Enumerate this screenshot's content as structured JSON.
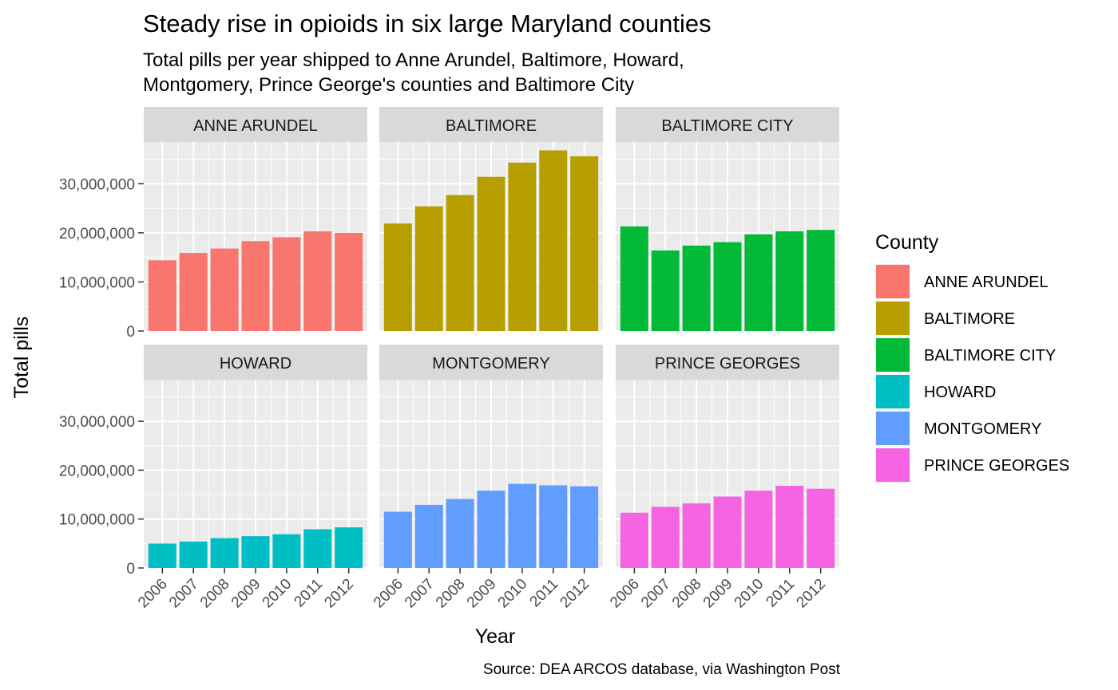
{
  "chart_data": {
    "type": "bar",
    "title": "Steady rise in opioids in six large Maryland counties",
    "subtitle_lines": [
      "Total pills per year shipped to Anne Arundel, Baltimore, Howard,",
      "Montgomery, Prince George's counties and Baltimore City"
    ],
    "xlabel": "Year",
    "ylabel": "Total pills",
    "caption": "Source: DEA ARCOS database, via Washington Post",
    "legend_title": "County",
    "legend_position": "right",
    "grid": true,
    "facet_layout": "3 columns x 2 rows",
    "categories": [
      "2006",
      "2007",
      "2008",
      "2009",
      "2010",
      "2011",
      "2012"
    ],
    "y_ticks": [
      0,
      10000000,
      20000000,
      30000000
    ],
    "y_tick_labels": [
      "0",
      "10,000,000",
      "20,000,000",
      "30,000,000"
    ],
    "ylim": [
      0,
      38500000
    ],
    "series": [
      {
        "name": "ANNE ARUNDEL",
        "color": "#F8766D",
        "values": [
          14400000,
          15900000,
          16800000,
          18300000,
          19100000,
          20300000,
          20000000
        ]
      },
      {
        "name": "BALTIMORE",
        "color": "#B79F00",
        "values": [
          21900000,
          25400000,
          27700000,
          31400000,
          34300000,
          36800000,
          35600000
        ]
      },
      {
        "name": "BALTIMORE CITY",
        "color": "#00BA38",
        "values": [
          21300000,
          16400000,
          17400000,
          18100000,
          19700000,
          20300000,
          20600000
        ]
      },
      {
        "name": "HOWARD",
        "color": "#00BFC4",
        "values": [
          5000000,
          5400000,
          6100000,
          6500000,
          6900000,
          7900000,
          8300000
        ]
      },
      {
        "name": "MONTGOMERY",
        "color": "#619CFF",
        "values": [
          11500000,
          12900000,
          14100000,
          15800000,
          17200000,
          16900000,
          16700000
        ]
      },
      {
        "name": "PRINCE GEORGES",
        "color": "#F564E3",
        "values": [
          11300000,
          12500000,
          13200000,
          14600000,
          15800000,
          16800000,
          16200000
        ]
      }
    ]
  }
}
